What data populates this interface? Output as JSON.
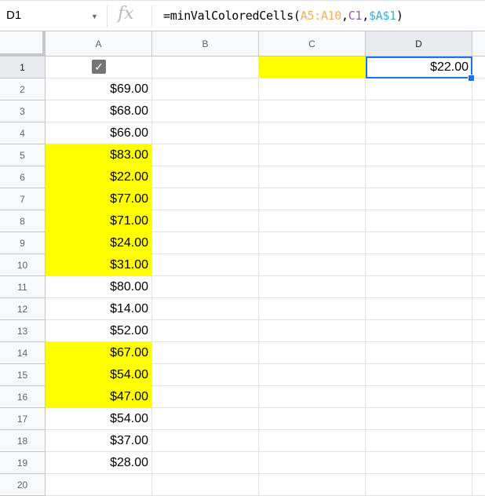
{
  "formula_bar": {
    "name_box": "D1",
    "fx_icon": "fx",
    "formula": {
      "prefix": "=minValColoredCells(",
      "arg1": "A5:A10",
      "comma1": ",",
      "arg2": "C1",
      "comma2": ",",
      "arg3": "$A$1",
      "suffix": ")"
    },
    "arg_colors": [
      "#f6ae5a",
      "#8e5fa8",
      "#3ab0d8"
    ]
  },
  "columns": [
    "A",
    "B",
    "C",
    "D"
  ],
  "rows": [
    "1",
    "2",
    "3",
    "4",
    "5",
    "6",
    "7",
    "8",
    "9",
    "10",
    "11",
    "12",
    "13",
    "14",
    "15",
    "16",
    "17",
    "18",
    "19",
    "20"
  ],
  "highlight_color": "#ffff00",
  "cells": {
    "A1_checkbox_checked": true,
    "C1_fill": "#ffff00",
    "D1": "$22.00",
    "A": [
      {
        "row": 2,
        "value": "$69.00",
        "yellow": false
      },
      {
        "row": 3,
        "value": "$68.00",
        "yellow": false
      },
      {
        "row": 4,
        "value": "$66.00",
        "yellow": false
      },
      {
        "row": 5,
        "value": "$83.00",
        "yellow": true
      },
      {
        "row": 6,
        "value": "$22.00",
        "yellow": true
      },
      {
        "row": 7,
        "value": "$77.00",
        "yellow": true
      },
      {
        "row": 8,
        "value": "$71.00",
        "yellow": true
      },
      {
        "row": 9,
        "value": "$24.00",
        "yellow": true
      },
      {
        "row": 10,
        "value": "$31.00",
        "yellow": true
      },
      {
        "row": 11,
        "value": "$80.00",
        "yellow": false
      },
      {
        "row": 12,
        "value": "$14.00",
        "yellow": false
      },
      {
        "row": 13,
        "value": "$52.00",
        "yellow": false
      },
      {
        "row": 14,
        "value": "$67.00",
        "yellow": true
      },
      {
        "row": 15,
        "value": "$54.00",
        "yellow": true
      },
      {
        "row": 16,
        "value": "$47.00",
        "yellow": true
      },
      {
        "row": 17,
        "value": "$54.00",
        "yellow": false
      },
      {
        "row": 18,
        "value": "$37.00",
        "yellow": false
      },
      {
        "row": 19,
        "value": "$28.00",
        "yellow": false
      }
    ]
  },
  "selected_cell": "D1"
}
